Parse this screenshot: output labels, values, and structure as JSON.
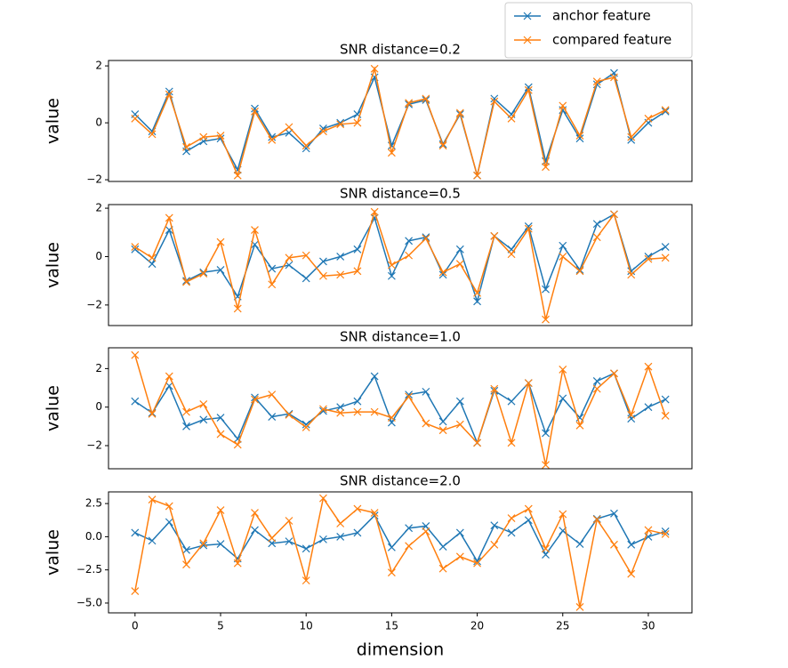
{
  "chart_data": [
    {
      "type": "line",
      "title": "SNR distance=0.2",
      "y_label": "value",
      "legend": "upper right",
      "x": [
        0,
        1,
        2,
        3,
        4,
        5,
        6,
        7,
        8,
        9,
        10,
        11,
        12,
        13,
        14,
        15,
        16,
        17,
        18,
        19,
        20,
        21,
        22,
        23,
        24,
        25,
        26,
        27,
        28,
        29,
        30,
        31
      ],
      "xlim": [
        -1.55,
        32.55
      ],
      "ylim": [
        -2.06,
        2.19
      ],
      "yticks": [
        {
          "value": -2,
          "label": "−2"
        },
        0,
        2
      ],
      "series": [
        {
          "name": "anchor feature",
          "color": "#1f77b4",
          "values": [
            0.3,
            -0.3,
            1.1,
            -1.0,
            -0.65,
            -0.55,
            -1.65,
            0.5,
            -0.5,
            -0.35,
            -0.9,
            -0.2,
            0.0,
            0.3,
            1.6,
            -0.8,
            0.65,
            0.8,
            -0.75,
            0.3,
            -1.85,
            0.85,
            0.3,
            1.25,
            -1.35,
            0.45,
            -0.55,
            1.35,
            1.75,
            -0.6,
            0.0,
            0.4
          ]
        },
        {
          "name": "compared feature",
          "color": "#ff7f0e",
          "values": [
            0.15,
            -0.4,
            1.0,
            -0.85,
            -0.5,
            -0.45,
            -1.85,
            0.4,
            -0.6,
            -0.15,
            -0.8,
            -0.3,
            -0.05,
            0.0,
            1.9,
            -1.05,
            0.7,
            0.85,
            -0.8,
            0.35,
            -1.85,
            0.75,
            0.15,
            1.15,
            -1.55,
            0.6,
            -0.45,
            1.45,
            1.6,
            -0.5,
            0.15,
            0.45
          ]
        }
      ]
    },
    {
      "type": "line",
      "title": "SNR distance=0.5",
      "y_label": "value",
      "x": [
        0,
        1,
        2,
        3,
        4,
        5,
        6,
        7,
        8,
        9,
        10,
        11,
        12,
        13,
        14,
        15,
        16,
        17,
        18,
        19,
        20,
        21,
        22,
        23,
        24,
        25,
        26,
        27,
        28,
        29,
        30,
        31
      ],
      "xlim": [
        -1.55,
        32.55
      ],
      "ylim": [
        -2.85,
        2.15
      ],
      "yticks": [
        {
          "value": -2,
          "label": "−2"
        },
        0,
        2
      ],
      "series": [
        {
          "color": "#1f77b4",
          "values": [
            0.3,
            -0.3,
            1.1,
            -1.0,
            -0.65,
            -0.55,
            -1.65,
            0.5,
            -0.5,
            -0.35,
            -0.9,
            -0.2,
            0.0,
            0.3,
            1.6,
            -0.8,
            0.65,
            0.8,
            -0.75,
            0.3,
            -1.85,
            0.85,
            0.3,
            1.25,
            -1.35,
            0.45,
            -0.55,
            1.35,
            1.75,
            -0.6,
            0.0,
            0.4
          ]
        },
        {
          "color": "#ff7f0e",
          "values": [
            0.4,
            -0.05,
            1.6,
            -1.05,
            -0.7,
            0.6,
            -2.15,
            1.1,
            -1.15,
            -0.05,
            0.05,
            -0.8,
            -0.75,
            -0.6,
            1.85,
            -0.35,
            0.05,
            0.75,
            -0.65,
            -0.3,
            -1.5,
            0.85,
            0.1,
            1.15,
            -2.6,
            0.0,
            -0.6,
            0.8,
            1.75,
            -0.75,
            -0.1,
            -0.05
          ]
        }
      ]
    },
    {
      "type": "line",
      "title": "SNR distance=1.0",
      "y_label": "value",
      "x": [
        0,
        1,
        2,
        3,
        4,
        5,
        6,
        7,
        8,
        9,
        10,
        11,
        12,
        13,
        14,
        15,
        16,
        17,
        18,
        19,
        20,
        21,
        22,
        23,
        24,
        25,
        26,
        27,
        28,
        29,
        30,
        31
      ],
      "xlim": [
        -1.55,
        32.55
      ],
      "ylim": [
        -3.2,
        3.08
      ],
      "yticks": [
        {
          "value": -2,
          "label": "−2"
        },
        0,
        2
      ],
      "series": [
        {
          "color": "#1f77b4",
          "values": [
            0.3,
            -0.3,
            1.1,
            -1.0,
            -0.65,
            -0.55,
            -1.65,
            0.5,
            -0.5,
            -0.35,
            -0.9,
            -0.2,
            0.0,
            0.3,
            1.6,
            -0.8,
            0.65,
            0.8,
            -0.75,
            0.3,
            -1.85,
            0.85,
            0.3,
            1.25,
            -1.35,
            0.45,
            -0.55,
            1.35,
            1.75,
            -0.6,
            0.0,
            0.4
          ]
        },
        {
          "color": "#ff7f0e",
          "values": [
            2.7,
            -0.35,
            1.6,
            -0.25,
            0.15,
            -1.4,
            -1.95,
            0.4,
            0.65,
            -0.4,
            -1.05,
            -0.1,
            -0.3,
            -0.25,
            -0.25,
            -0.55,
            0.55,
            -0.85,
            -1.2,
            -0.9,
            -1.85,
            0.95,
            -1.85,
            1.25,
            -3.0,
            1.95,
            -0.95,
            0.95,
            1.75,
            -0.4,
            2.1,
            -0.45
          ]
        }
      ]
    },
    {
      "type": "line",
      "title": "SNR distance=2.0",
      "y_label": "value",
      "x_label": "dimension",
      "x": [
        0,
        1,
        2,
        3,
        4,
        5,
        6,
        7,
        8,
        9,
        10,
        11,
        12,
        13,
        14,
        15,
        16,
        17,
        18,
        19,
        20,
        21,
        22,
        23,
        24,
        25,
        26,
        27,
        28,
        29,
        30,
        31
      ],
      "xlim": [
        -1.55,
        32.55
      ],
      "ylim": [
        -5.74,
        3.38
      ],
      "xticks": [
        0,
        5,
        10,
        15,
        20,
        25,
        30
      ],
      "yticks": [
        {
          "value": -5,
          "label": "−5.0"
        },
        {
          "value": -2.5,
          "label": "−2.5"
        },
        {
          "value": 0,
          "label": "0.0"
        },
        2.5
      ],
      "series": [
        {
          "color": "#1f77b4",
          "values": [
            0.3,
            -0.3,
            1.1,
            -1.0,
            -0.65,
            -0.55,
            -1.65,
            0.5,
            -0.5,
            -0.35,
            -0.9,
            -0.2,
            0.0,
            0.3,
            1.6,
            -0.8,
            0.65,
            0.8,
            -0.75,
            0.3,
            -1.85,
            0.85,
            0.3,
            1.25,
            -1.35,
            0.45,
            -0.55,
            1.35,
            1.75,
            -0.6,
            0.0,
            0.4
          ]
        },
        {
          "color": "#ff7f0e",
          "values": [
            -4.1,
            2.8,
            2.3,
            -2.1,
            -0.5,
            2.0,
            -2.0,
            1.8,
            -0.1,
            1.2,
            -3.3,
            2.9,
            1.0,
            2.1,
            1.8,
            -2.7,
            -0.7,
            0.4,
            -2.4,
            -1.5,
            -2.0,
            -0.6,
            1.4,
            2.1,
            -0.9,
            1.7,
            -5.3,
            1.3,
            -0.6,
            -2.8,
            0.5,
            0.2
          ]
        }
      ]
    }
  ]
}
